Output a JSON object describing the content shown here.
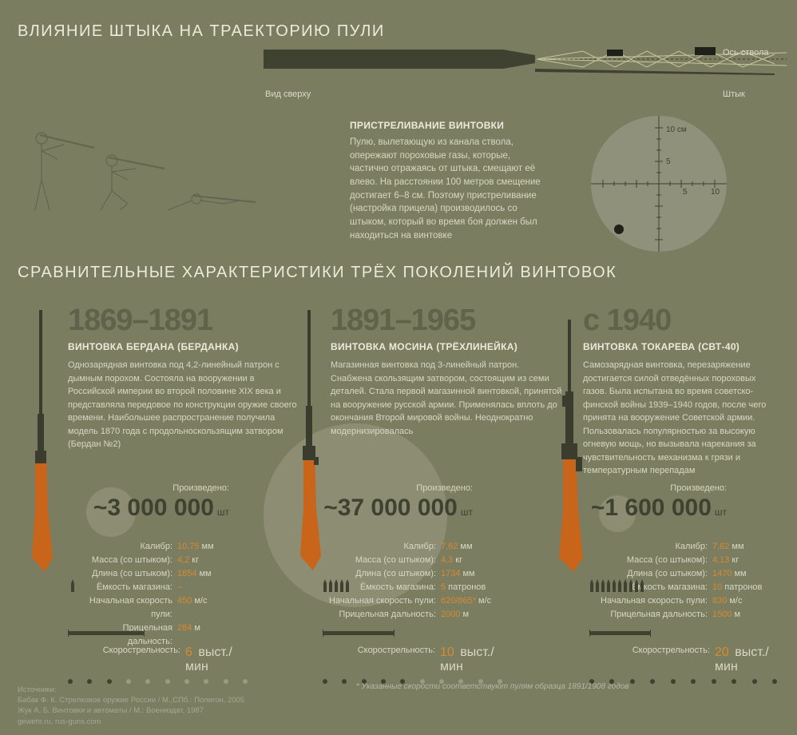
{
  "top": {
    "title": "ВЛИЯНИЕ ШТЫКА НА ТРАЕКТОРИЮ ПУЛИ",
    "view_label": "Вид сверху",
    "axis_label": "Ось ствола",
    "bayonet_label": "Штык",
    "sighting_title": "ПРИСТРЕЛИВАНИЕ ВИНТОВКИ",
    "sighting_text": "Пулю, вылетающую из канала ствола, опережают пороховые газы, которые, частично отражаясь от штыка, смещают её влево. На расстоянии 100 метров смещение достигает 6–8 см. Поэтому пристреливание (настройка прицела) производилось со штыком, который во время боя должен был находиться на винтовке",
    "reticle": {
      "top_label": "10 см",
      "tick_labels": [
        "5",
        "5",
        "10"
      ],
      "bg": "#8f917a",
      "tick_color": "#3f4131"
    },
    "barrel_color": "#3f4131",
    "ray_color": "#e8e6b8"
  },
  "compare_title": "СРАВНИТЕЛЬНЫЕ ХАРАКТЕРИСТИКИ ТРЁХ ПОКОЛЕНИЙ ВИНТОВОК",
  "rifles": [
    {
      "years": "1869–1891",
      "name": "ВИНТОВКА БЕРДАНА (БЕРДАНКА)",
      "desc": "Однозарядная винтовка под 4,2-линейный патрон с дымным порохом. Состояла на вооружении в Российской империи во второй половине XIX века и представляла передовое по конструкции оружие своего времени. Наибольшее распространение получила модель 1870 года с продольноскользящим затвором (Бердан №2)",
      "produced_label": "Произведено:",
      "produced_value": "~3 000 000",
      "produced_unit": "шт",
      "circle_d": 62,
      "specs": [
        {
          "label": "Калибр:",
          "val": "10,75",
          "unit": "мм"
        },
        {
          "label": "Масса (со штыком):",
          "val": "4,2",
          "unit": "кг"
        },
        {
          "label": "Длина (со штыком):",
          "val": "1854",
          "unit": "мм"
        },
        {
          "label": "Ёмкость магазина:",
          "val": "–",
          "unit": ""
        },
        {
          "label": "Начальная скорость пули:",
          "val": "450",
          "unit": "м/с"
        },
        {
          "label": "Прицельная дальность:",
          "val": "284",
          "unit": "м"
        }
      ],
      "rate_label": "Скорострельность:",
      "rate_val": "6",
      "rate_unit": "выст./мин",
      "rate_dots_filled": 3,
      "rate_dots_total": 10,
      "cartridges": 1,
      "stock_color": "#c9641b",
      "metal_color": "#3a3c2e"
    },
    {
      "years": "1891–1965",
      "name": "ВИНТОВКА МОСИНА (ТРЁХЛИНЕЙКА)",
      "desc": "Магазинная винтовка под 3-линейный патрон. Снабжена скользящим затвором, состоящим из семи деталей. Стала первой магазинной винтовкой, принятой на вооружение русской армии. Применялась вплоть до окончания Второй мировой войны. Неоднократно модернизировалась",
      "produced_label": "Произведено:",
      "produced_value": "~37 000 000",
      "produced_unit": "шт",
      "circle_d": 230,
      "specs": [
        {
          "label": "Калибр:",
          "val": "7,62",
          "unit": "мм"
        },
        {
          "label": "Масса (со штыком):",
          "val": "4,3",
          "unit": "кг"
        },
        {
          "label": "Длина (со штыком):",
          "val": "1734",
          "unit": "мм"
        },
        {
          "label": "Ёмкость магазина:",
          "val": "5",
          "unit": "патронов"
        },
        {
          "label": "Начальная скорость пули:",
          "val": "620/865*",
          "unit": "м/с"
        },
        {
          "label": "Прицельная дальность:",
          "val": "2000",
          "unit": "м"
        }
      ],
      "rate_label": "Скорострельность:",
      "rate_val": "10",
      "rate_unit": "выст./мин",
      "rate_dots_filled": 5,
      "rate_dots_total": 10,
      "cartridges": 5,
      "stock_color": "#c9641b",
      "metal_color": "#3a3c2e"
    },
    {
      "years": "с 1940",
      "name": "ВИНТОВКА ТОКАРЕВА (СВТ-40)",
      "desc": "Самозарядная винтовка, перезаряжение достигается силой отведённых пороховых газов. Была испытана во время советско-финской войны 1939–1940 годов, после чего принята на вооружение Советской армии. Пользовалась популярностью за высокую огневую мощь, но вызывала нарекания за чувствительность механизма к грязи и температурным перепадам",
      "produced_label": "Произведено:",
      "produced_value": "~1 600 000",
      "produced_unit": "шт",
      "circle_d": 46,
      "specs": [
        {
          "label": "Калибр:",
          "val": "7,62",
          "unit": "мм"
        },
        {
          "label": "Масса (со штыком):",
          "val": "4,13",
          "unit": "кг"
        },
        {
          "label": "Длина (со штыком):",
          "val": "1470",
          "unit": "мм"
        },
        {
          "label": "Ёмкость магазина:",
          "val": "10",
          "unit": "патронов"
        },
        {
          "label": "Начальная скорость пули:",
          "val": "830",
          "unit": "м/с"
        },
        {
          "label": "Прицельная дальность:",
          "val": "1500",
          "unit": "м"
        }
      ],
      "rate_label": "Скорострельность:",
      "rate_val": "20",
      "rate_unit": "выст./мин",
      "rate_dots_filled": 10,
      "rate_dots_total": 10,
      "cartridges": 10,
      "stock_color": "#c9641b",
      "metal_color": "#3a3c2e"
    }
  ],
  "footnote": "* Указанные скорости соответствуют пулям образца 1891/1908 годов",
  "sources_title": "Источники:",
  "sources": [
    "Бабак Ф. К. Стрелковое оружие России / М.,СПб.: Полигон, 2005",
    "Жук А. Б. Винтовки и автоматы / М.: Воениздат, 1987",
    "gewehr.ru, rus-guns.com"
  ],
  "colors": {
    "bg": "#7a7d60",
    "heading": "#eceadb",
    "year": "#606349",
    "accent": "#d98a2f",
    "dark": "#3f4131",
    "circle": "#9a9b83"
  }
}
